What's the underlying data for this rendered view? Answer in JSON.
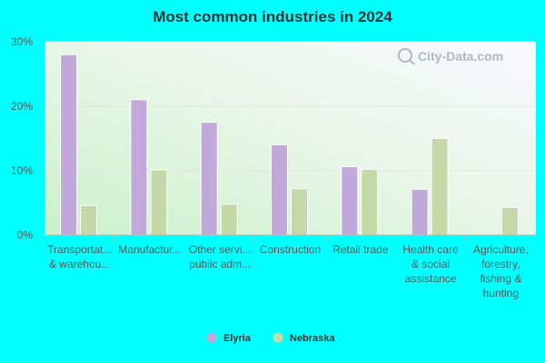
{
  "chart_data": {
    "type": "bar",
    "title": "Most common industries in 2024",
    "categories": [
      [
        "Transportat...",
        "& warehou..."
      ],
      [
        "Manufactur..."
      ],
      [
        "Other servi...",
        "public adm..."
      ],
      [
        "Construction"
      ],
      [
        "Retail trade"
      ],
      [
        "Health care",
        "& social",
        "assistance"
      ],
      [
        "Agriculture,",
        "forestry,",
        "fishing &",
        "hunting"
      ]
    ],
    "series": [
      {
        "name": "Elyria",
        "color": "#c0a8d8",
        "values": [
          28.0,
          21.0,
          17.5,
          14.0,
          10.6,
          7.1,
          null
        ]
      },
      {
        "name": "Nebraska",
        "color": "#c4d8a8",
        "values": [
          4.6,
          10.1,
          4.8,
          7.2,
          10.2,
          15.0,
          4.3
        ]
      }
    ],
    "y_ticks": [
      "0%",
      "10%",
      "20%",
      "30%"
    ],
    "ylim": [
      0,
      30
    ],
    "grid": true,
    "legend_position": "bottom-center",
    "watermark": "City-Data.com"
  }
}
